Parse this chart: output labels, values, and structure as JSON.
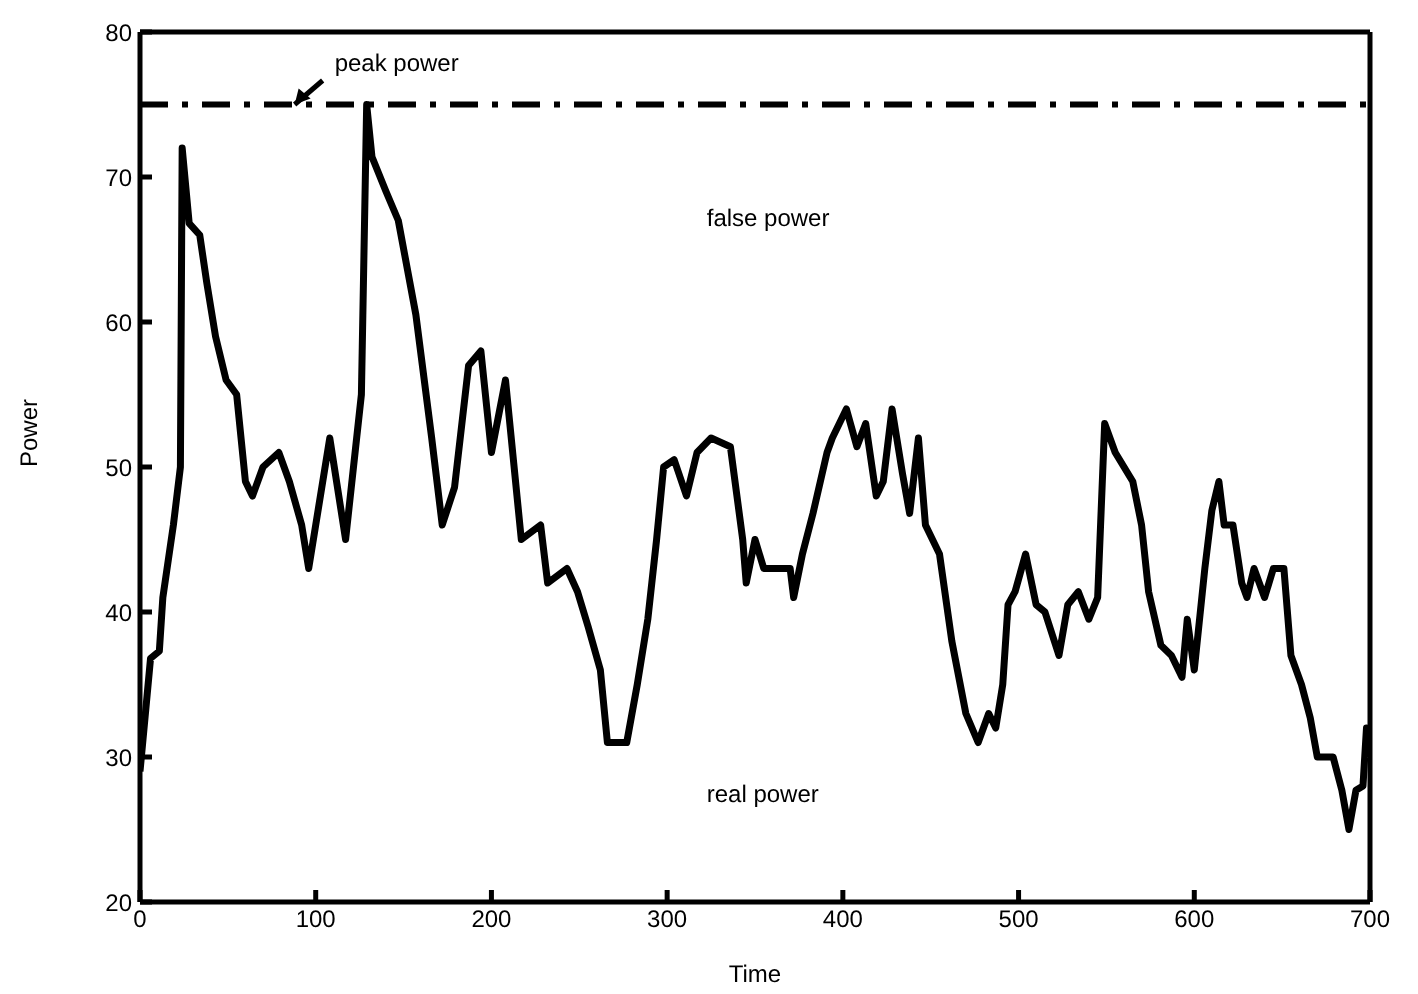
{
  "chart_data": {
    "type": "line",
    "xlabel": "Time",
    "ylabel": "Power",
    "xlim": [
      0,
      700
    ],
    "ylim": [
      20,
      80
    ],
    "xticks": [
      0,
      100,
      200,
      300,
      400,
      500,
      600,
      700
    ],
    "yticks": [
      20,
      30,
      40,
      50,
      60,
      70,
      80
    ],
    "legend": false,
    "marker": "none",
    "line_style": "solid",
    "series": [
      {
        "color": "#000000",
        "x": [
          0,
          6,
          11,
          13,
          19,
          23,
          24,
          28,
          34,
          38,
          43,
          49,
          55,
          60,
          64,
          70,
          79,
          85,
          92,
          96,
          108,
          117,
          126,
          129,
          132,
          140,
          147,
          157,
          166,
          172,
          179,
          187,
          194,
          200,
          208,
          217,
          228,
          232,
          243,
          249,
          255,
          262,
          266,
          277,
          283,
          289,
          294,
          298,
          304,
          311,
          317,
          325,
          336,
          343,
          345,
          350,
          355,
          370,
          372,
          377,
          383,
          391,
          394,
          402,
          408,
          413,
          419,
          423,
          428,
          434,
          438,
          443,
          447,
          455,
          462,
          470,
          477,
          483,
          487,
          491,
          494,
          498,
          504,
          510,
          515,
          523,
          528,
          534,
          540,
          545,
          549,
          555,
          560,
          565,
          570,
          574,
          581,
          587,
          593,
          596,
          600,
          606,
          610,
          614,
          617,
          622,
          627,
          630,
          634,
          640,
          645,
          651,
          655,
          661,
          666,
          670,
          679,
          684,
          688,
          692,
          696,
          698,
          700
        ],
        "values": [
          29,
          36.8,
          37.3,
          41,
          46,
          50,
          72,
          66.8,
          66,
          62.7,
          59,
          56,
          55,
          49,
          48,
          50,
          51,
          49,
          46,
          43,
          52,
          45,
          55,
          75,
          71.4,
          69,
          67,
          60.5,
          52,
          46,
          48.6,
          57,
          58,
          51,
          56,
          45,
          46,
          42,
          43,
          41.4,
          39,
          36,
          31,
          31,
          35,
          39.5,
          45,
          50,
          50.5,
          48,
          51,
          52,
          51.4,
          45,
          42,
          45,
          43,
          43,
          41,
          44,
          46.8,
          51,
          52,
          54,
          51.4,
          53,
          48,
          49,
          54,
          49.5,
          46.8,
          52,
          46,
          44,
          38,
          33,
          31,
          33,
          32,
          35,
          40.5,
          41.4,
          44,
          40.5,
          40,
          37,
          40.5,
          41.4,
          39.5,
          41,
          53,
          51,
          50,
          49,
          46,
          41.4,
          37.7,
          37,
          35.5,
          39.5,
          36,
          43,
          47,
          49,
          46,
          46,
          42,
          41,
          43,
          41,
          43,
          43,
          37,
          35,
          32.7,
          30,
          30,
          27.7,
          25,
          27.7,
          28,
          32,
          30
        ]
      }
    ],
    "ref_lines": [
      {
        "axis": "y",
        "value": 75,
        "color": "#000000",
        "line_style": "dashdot"
      }
    ],
    "annotations": [
      {
        "text": "peak power",
        "x": 88,
        "y": 75
      },
      "false power",
      "real power"
    ]
  }
}
